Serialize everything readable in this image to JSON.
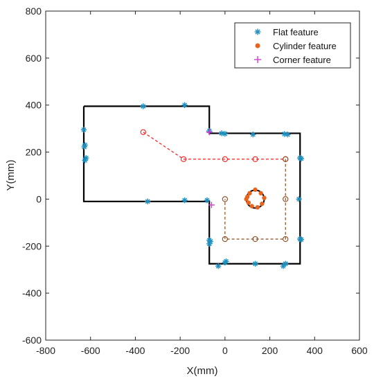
{
  "chart_data": {
    "type": "scatter",
    "xlabel": "X(mm)",
    "ylabel": "Y(mm)",
    "xlim": [
      -800,
      600
    ],
    "ylim": [
      -600,
      800
    ],
    "x_ticks": [
      -800,
      -600,
      -400,
      -200,
      0,
      200,
      400,
      600
    ],
    "y_ticks": [
      -600,
      -400,
      -200,
      0,
      200,
      400,
      600,
      800
    ],
    "grid": false,
    "legend_position": "top-right",
    "colors": {
      "flat": "#1f8fbf",
      "cylinder": "#e8641e",
      "corner": "#d63ad1",
      "outline": "#000000",
      "path": "#ff1a1a",
      "path_lower": "#8b4a1a",
      "cylinder_ring": "#000000"
    },
    "outline": [
      [
        -630,
        395
      ],
      [
        -70,
        395
      ],
      [
        -70,
        280
      ],
      [
        335,
        280
      ],
      [
        335,
        -275
      ],
      [
        -70,
        -275
      ],
      [
        -70,
        -10
      ],
      [
        -630,
        -10
      ],
      [
        -630,
        395
      ]
    ],
    "trajectory_upper": [
      [
        -365,
        285
      ],
      [
        -185,
        170
      ],
      [
        0,
        170
      ],
      [
        135,
        170
      ],
      [
        270,
        170
      ]
    ],
    "trajectory_lower": [
      [
        270,
        170
      ],
      [
        270,
        0
      ],
      [
        270,
        -170
      ],
      [
        135,
        -170
      ],
      [
        0,
        -170
      ],
      [
        0,
        0
      ]
    ],
    "cylinder_obstacle": {
      "center": [
        135,
        0
      ],
      "radius": 40
    },
    "series": [
      {
        "name": "Flat feature",
        "marker": "asterisk",
        "points": [
          [
            -365,
            395
          ],
          [
            -180,
            400
          ],
          [
            -630,
            295
          ],
          [
            -625,
            230
          ],
          [
            -628,
            222
          ],
          [
            -625,
            165
          ],
          [
            -620,
            175
          ],
          [
            -70,
            290
          ],
          [
            -15,
            280
          ],
          [
            0,
            278
          ],
          [
            125,
            275
          ],
          [
            265,
            277
          ],
          [
            280,
            275
          ],
          [
            335,
            175
          ],
          [
            340,
            172
          ],
          [
            -345,
            -10
          ],
          [
            -180,
            -5
          ],
          [
            -80,
            -5
          ],
          [
            -70,
            -175
          ],
          [
            -65,
            -180
          ],
          [
            -70,
            -190
          ],
          [
            -30,
            -285
          ],
          [
            0,
            -270
          ],
          [
            5,
            -265
          ],
          [
            135,
            -275
          ],
          [
            260,
            -285
          ],
          [
            270,
            -275
          ],
          [
            330,
            0
          ],
          [
            335,
            -170
          ],
          [
            340,
            -172
          ]
        ]
      },
      {
        "name": "Cylinder feature",
        "marker": "dot",
        "points": [
          [
            95,
            0
          ],
          [
            110,
            25
          ],
          [
            135,
            40
          ],
          [
            160,
            25
          ],
          [
            175,
            5
          ],
          [
            165,
            -20
          ],
          [
            145,
            -35
          ],
          [
            120,
            -30
          ],
          [
            105,
            -15
          ],
          [
            100,
            10
          ]
        ]
      },
      {
        "name": "Corner feature",
        "marker": "plus",
        "points": [
          [
            -60,
            -25
          ],
          [
            -70,
            285
          ]
        ]
      }
    ]
  }
}
